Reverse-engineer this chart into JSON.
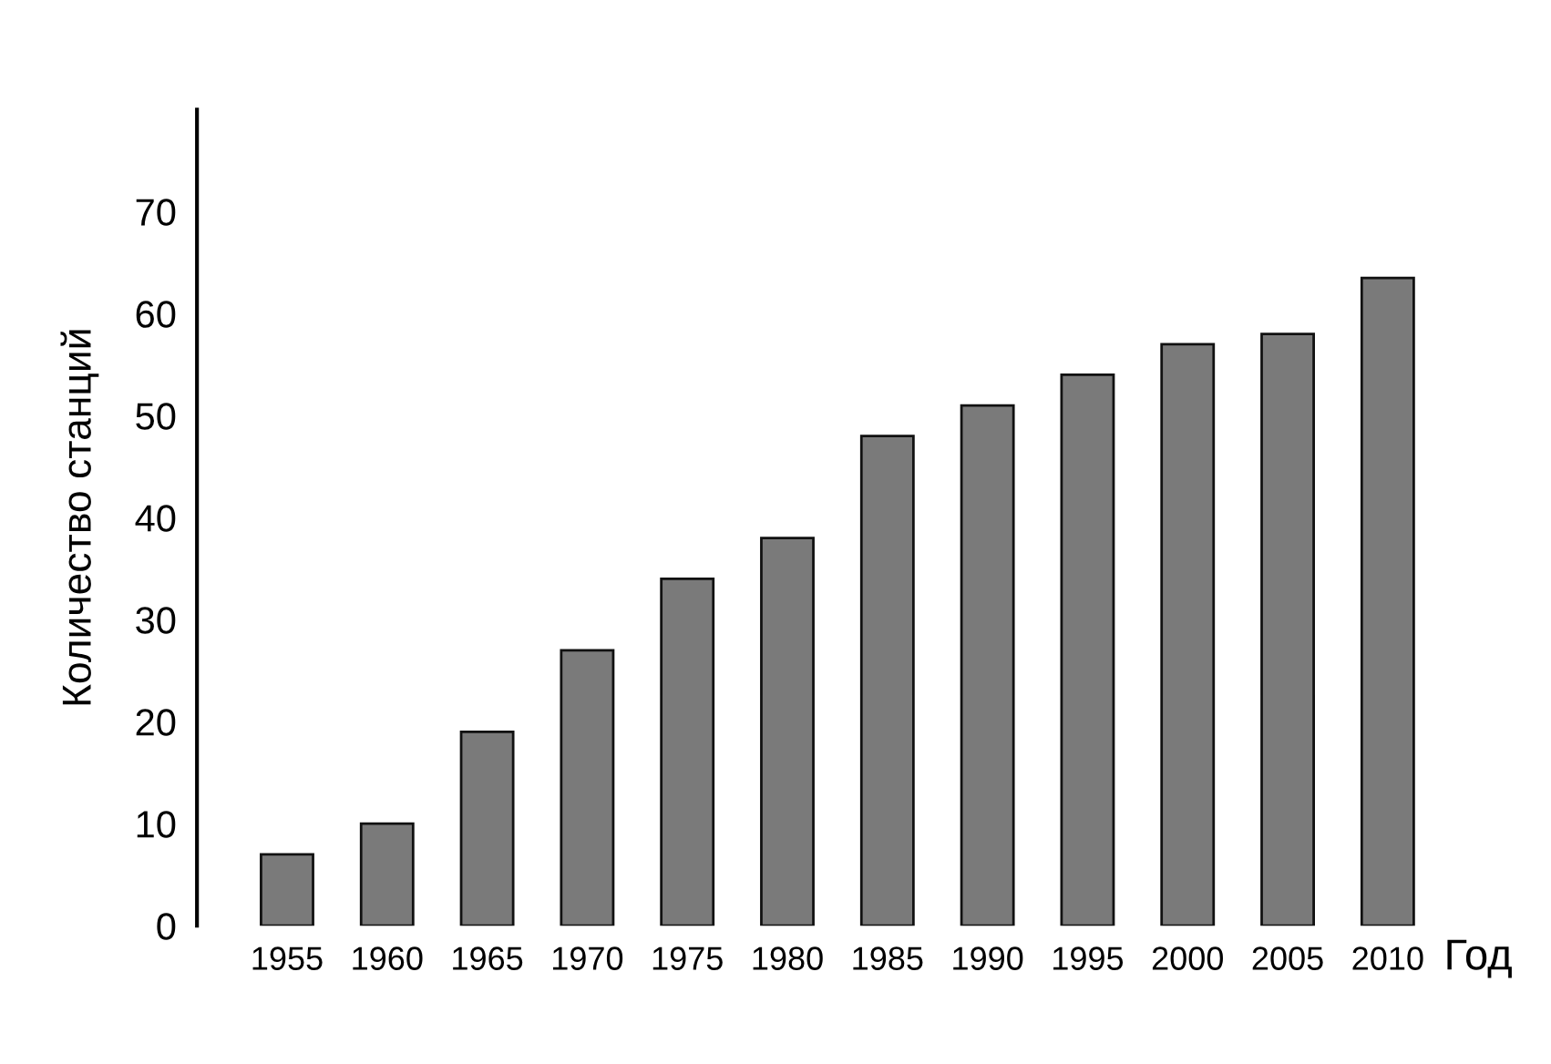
{
  "chart_data": {
    "type": "bar",
    "xlabel": "Год",
    "ylabel": "Количество станций",
    "categories": [
      "1955",
      "1960",
      "1965",
      "1970",
      "1975",
      "1980",
      "1985",
      "1990",
      "1995",
      "2000",
      "2005",
      "2010"
    ],
    "values": [
      7,
      10,
      19,
      27,
      34,
      38,
      48,
      51,
      54,
      57,
      58,
      63.5
    ],
    "color": "#7a7a7a",
    "ylim": [
      0,
      80
    ],
    "yticks": [
      0,
      10,
      20,
      30,
      40,
      50,
      60,
      70
    ],
    "grid": false,
    "legend": false
  }
}
